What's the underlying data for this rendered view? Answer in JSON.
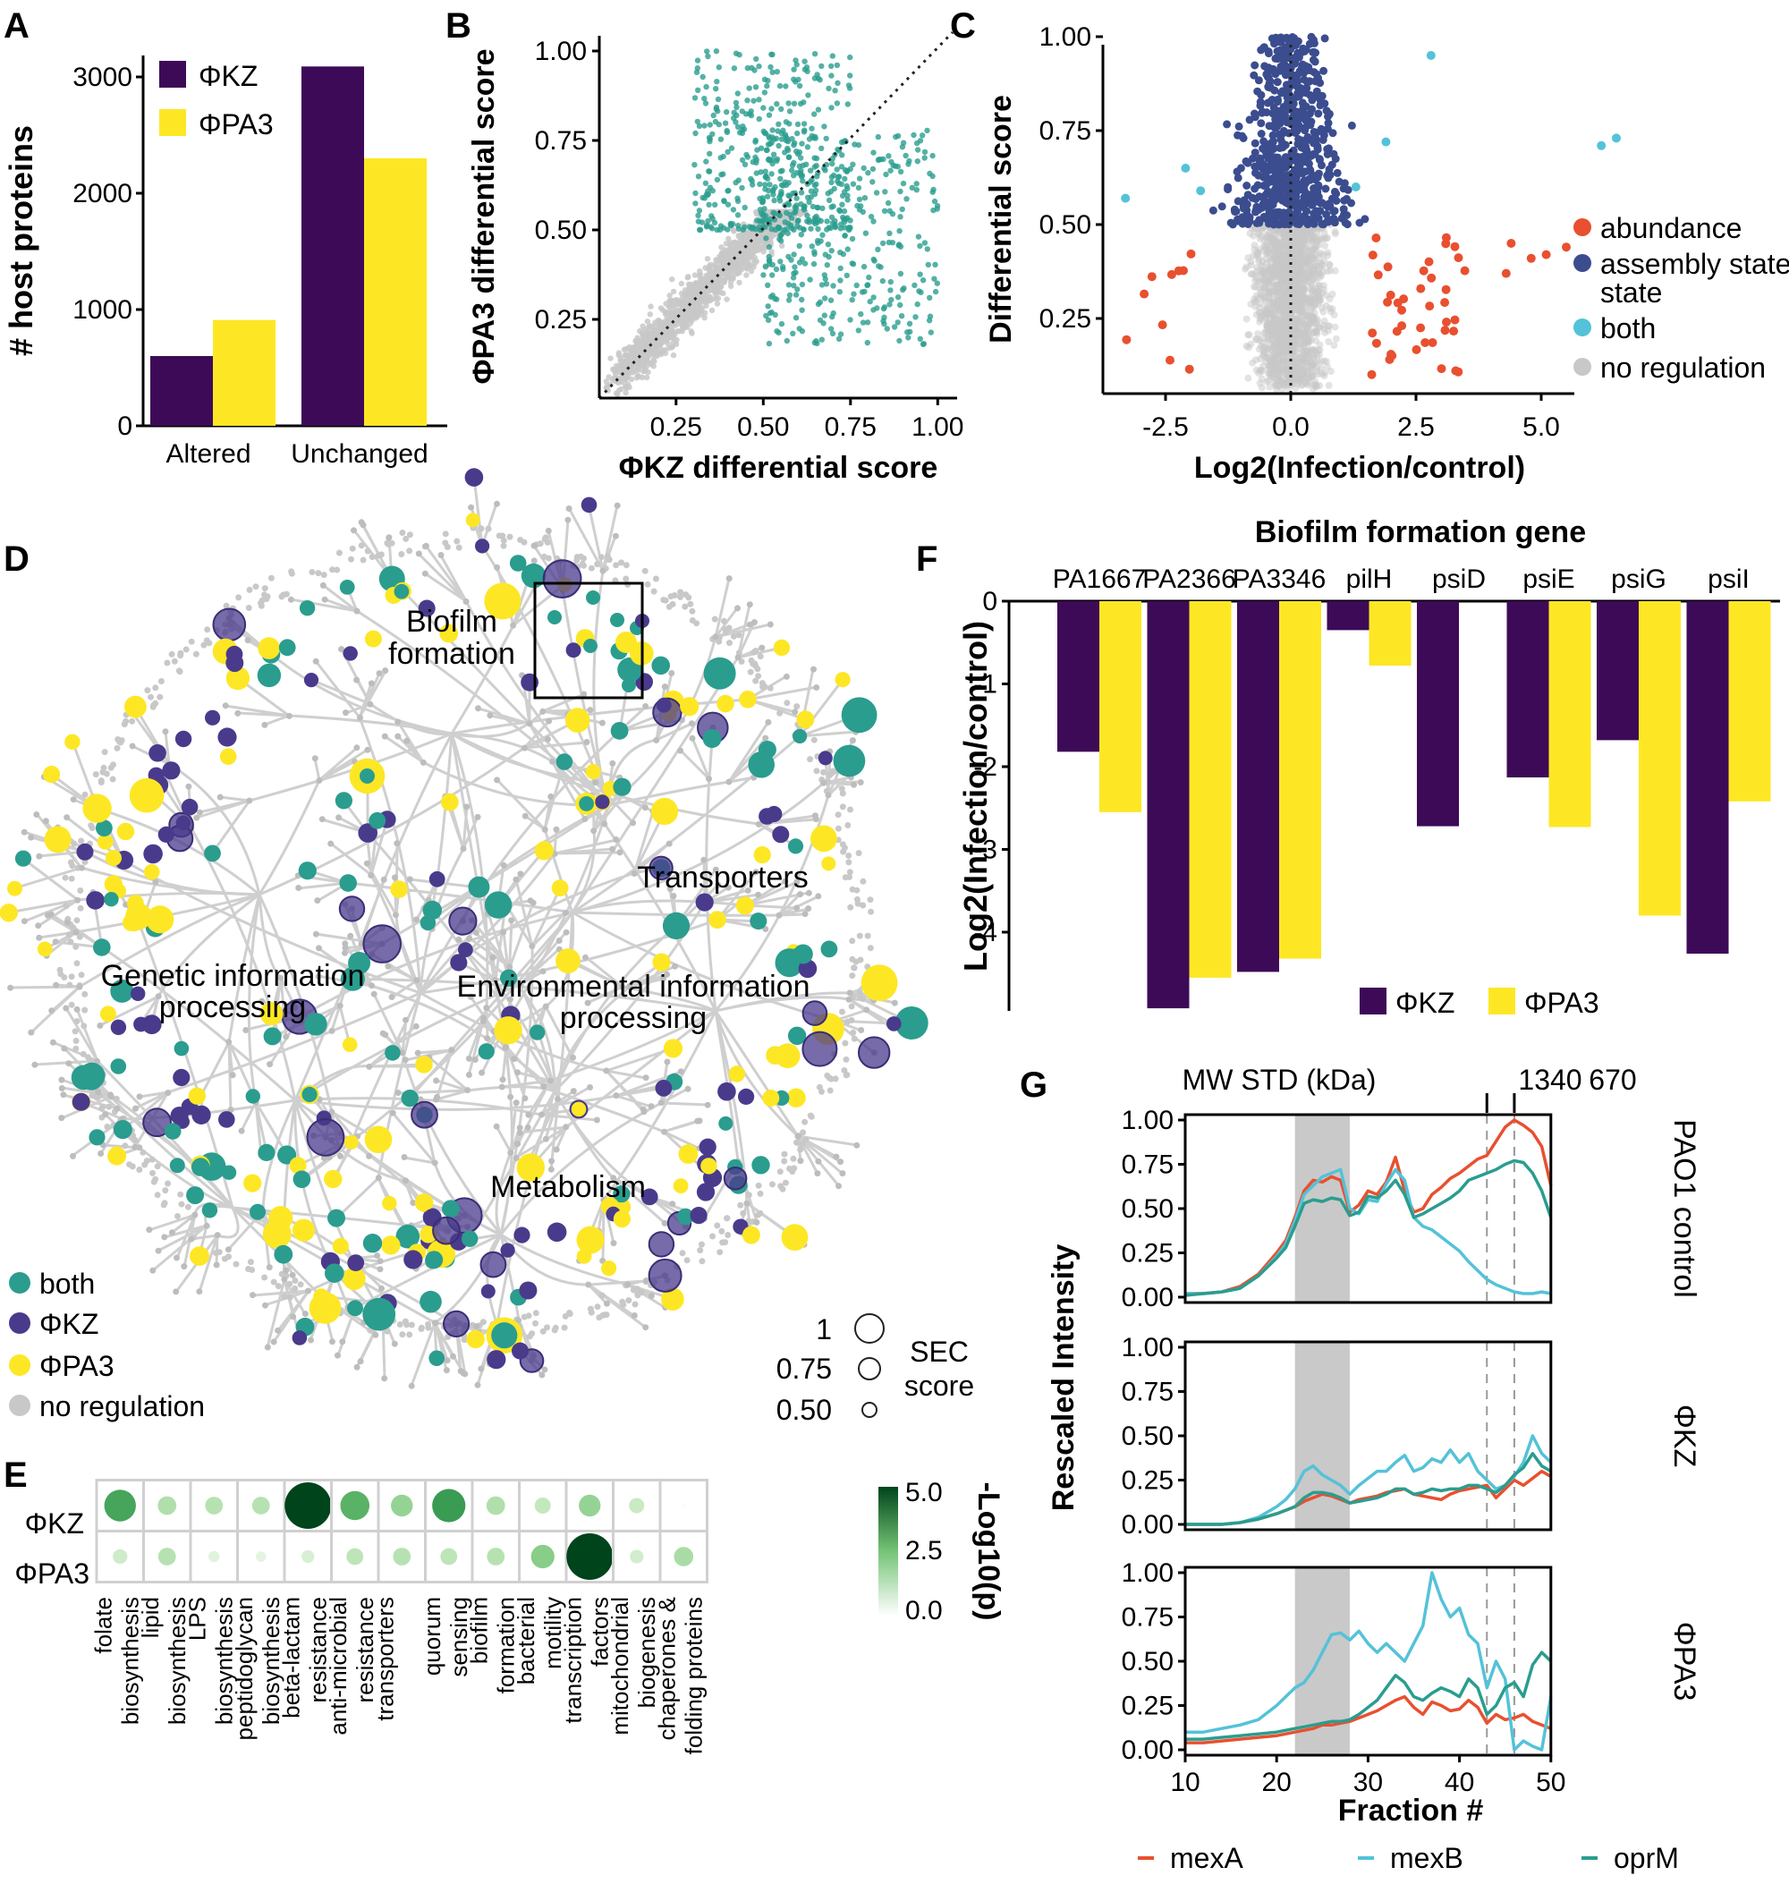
{
  "panels": {
    "A": "A",
    "B": "B",
    "C": "C",
    "D": "D",
    "E": "E",
    "F": "F",
    "G": "G"
  },
  "colors": {
    "phikz": "#3d0a57",
    "phipa3": "#fde725",
    "teal": "#2a9d8f",
    "navy": "#3b4d8f",
    "red": "#e8502f",
    "cyan": "#54c2d8",
    "gray": "#c8c8c8",
    "navyNode": "#4a3a8c"
  },
  "chart_data": [
    {
      "id": "A",
      "type": "bar",
      "categories": [
        "Altered",
        "Unchanged"
      ],
      "series": [
        {
          "name": "ΦKZ",
          "values": [
            600,
            3090
          ]
        },
        {
          "name": "ΦPA3",
          "values": [
            910,
            2300
          ]
        }
      ],
      "ylabel": "# host proteins",
      "ylim": [
        0,
        3100
      ],
      "yticks": [
        "0",
        "1000",
        "2000",
        "3000"
      ],
      "legend": [
        "ΦKZ",
        "ΦPA3"
      ]
    },
    {
      "id": "B",
      "type": "scatter",
      "xlabel": "ΦKZ differential score",
      "ylabel": "ΦPA3 differential score",
      "xlim": [
        0.03,
        1.03
      ],
      "ylim": [
        0.03,
        1.03
      ],
      "xticks": [
        "0.25",
        "0.50",
        "0.75",
        "1.00"
      ],
      "yticks": [
        "0.25",
        "0.50",
        "0.75",
        "1.00"
      ],
      "reference_line": "y = x (dotted)",
      "groups": [
        "differential (teal)",
        "not differential (gray)"
      ]
    },
    {
      "id": "C",
      "type": "scatter",
      "xlabel": "Log2(Infection/control)",
      "ylabel": "Differential score",
      "xlim": [
        -4.5,
        7.2
      ],
      "ylim": [
        0.05,
        1.0
      ],
      "xticks": [
        "-2.5",
        "0.0",
        "2.5",
        "5.0"
      ],
      "yticks": [
        "0.25",
        "0.50",
        "0.75",
        "1.00"
      ],
      "legend": [
        "abundance",
        "assembly state",
        "both",
        "no regulation"
      ],
      "legend_extra": "state"
    },
    {
      "id": "D",
      "type": "network",
      "labels": {
        "biofilm1": "Biofilm",
        "biofilm2": "formation",
        "transporters": "Transporters",
        "gip1": "Genetic information",
        "gip2": "processing",
        "eip1": "Environmental information",
        "eip2": "processing",
        "metabolism": "Metabolism"
      },
      "legend": [
        "both",
        "ΦKZ",
        "ΦPA3",
        "no regulation"
      ],
      "size_legend": {
        "values": [
          "1",
          "0.75",
          "0.50"
        ],
        "title1": "SEC",
        "title2": "score"
      }
    },
    {
      "id": "E",
      "type": "heatmap",
      "rows": [
        "ΦKZ",
        "ΦPA3"
      ],
      "columns": [
        [
          "folate",
          "biosynthesis"
        ],
        [
          "lipid",
          "biosynthesis"
        ],
        [
          "LPS",
          "biosynthesis"
        ],
        [
          "peptidoglycan",
          "biosynthesis"
        ],
        [
          "beta-lactam",
          "resistance"
        ],
        [
          "anti-microbial",
          "resistance"
        ],
        [
          "transporters",
          ""
        ],
        [
          "quorum",
          "sensing"
        ],
        [
          "biofilm",
          "formation"
        ],
        [
          "bacterial",
          "motility"
        ],
        [
          "transcription",
          "factors"
        ],
        [
          "mitochondrial",
          "biogenesis"
        ],
        [
          "chaperones &",
          "folding proteins"
        ]
      ],
      "values": [
        [
          3.2,
          1.6,
          1.5,
          1.5,
          5.0,
          2.9,
          2.0,
          3.4,
          1.6,
          1.3,
          2.0,
          1.2,
          0.1
        ],
        [
          1.1,
          1.5,
          0.7,
          0.6,
          0.9,
          1.4,
          1.5,
          1.4,
          1.5,
          2.2,
          5.0,
          1.0,
          1.7
        ]
      ],
      "colorbar": {
        "label": "-Log10(p)",
        "ticks": [
          "5.0",
          "2.5",
          "0.0"
        ],
        "max": 5.0
      }
    },
    {
      "id": "F",
      "type": "bar",
      "title": "Biofilm formation gene",
      "categories": [
        "PA1667",
        "PA2366",
        "PA3346",
        "pilH",
        "psiD",
        "psiE",
        "psiG",
        "psiI"
      ],
      "series": [
        {
          "name": "ΦKZ",
          "values": [
            -1.82,
            -4.92,
            -4.48,
            -0.35,
            -2.72,
            -2.13,
            -1.68,
            -4.26
          ]
        },
        {
          "name": "ΦPA3",
          "values": [
            -2.55,
            -4.55,
            -4.32,
            -0.78,
            null,
            -2.73,
            -3.8,
            -2.42
          ]
        }
      ],
      "ylabel": "Log2(Infection/control)",
      "ylim": [
        -5,
        0
      ],
      "yticks": [
        "0",
        "-1",
        "-2",
        "-3",
        "-4"
      ],
      "legend": [
        "ΦKZ",
        "ΦPA3"
      ]
    },
    {
      "id": "G",
      "type": "line",
      "xlabel": "Fraction #",
      "ylabel": "Rescaled Intensity",
      "top_label": "MW STD (kDa)",
      "markers": [
        "1340",
        "670"
      ],
      "marker_x": [
        43,
        46
      ],
      "shaded_range": [
        22,
        28
      ],
      "x": [
        10,
        12,
        14,
        16,
        18,
        20,
        21,
        22,
        23,
        24,
        25,
        26,
        27,
        28,
        29,
        30,
        31,
        32,
        33,
        34,
        35,
        36,
        37,
        38,
        39,
        40,
        41,
        42,
        43,
        44,
        45,
        46,
        47,
        48,
        49,
        50
      ],
      "xlim": [
        10,
        50
      ],
      "ylim": [
        0,
        1
      ],
      "xticks": [
        "10",
        "20",
        "30",
        "40",
        "50"
      ],
      "yticks": [
        "0.00",
        "0.25",
        "0.50",
        "0.75",
        "1.00"
      ],
      "legend": [
        "mexA",
        "mexB",
        "oprM"
      ],
      "subpanels": [
        {
          "label": "PAO1 control",
          "series": [
            {
              "name": "mexA",
              "values": [
                0.02,
                0.02,
                0.03,
                0.06,
                0.13,
                0.25,
                0.32,
                0.45,
                0.6,
                0.66,
                0.65,
                0.68,
                0.66,
                0.48,
                0.52,
                0.6,
                0.58,
                0.65,
                0.79,
                0.6,
                0.48,
                0.5,
                0.58,
                0.62,
                0.67,
                0.7,
                0.74,
                0.78,
                0.8,
                0.88,
                0.96,
                1.0,
                0.97,
                0.93,
                0.85,
                0.63
              ]
            },
            {
              "name": "mexB",
              "values": [
                0.02,
                0.02,
                0.03,
                0.05,
                0.12,
                0.23,
                0.3,
                0.43,
                0.58,
                0.63,
                0.68,
                0.7,
                0.72,
                0.5,
                0.47,
                0.55,
                0.54,
                0.64,
                0.72,
                0.66,
                0.45,
                0.4,
                0.38,
                0.34,
                0.3,
                0.26,
                0.2,
                0.15,
                0.1,
                0.07,
                0.05,
                0.03,
                0.02,
                0.02,
                0.03,
                0.02
              ]
            },
            {
              "name": "oprM",
              "values": [
                0.01,
                0.02,
                0.03,
                0.05,
                0.12,
                0.22,
                0.28,
                0.4,
                0.53,
                0.55,
                0.54,
                0.56,
                0.55,
                0.46,
                0.48,
                0.57,
                0.56,
                0.6,
                0.66,
                0.58,
                0.45,
                0.47,
                0.5,
                0.53,
                0.56,
                0.6,
                0.66,
                0.68,
                0.7,
                0.72,
                0.75,
                0.77,
                0.76,
                0.7,
                0.6,
                0.45
              ]
            }
          ]
        },
        {
          "label": "ΦKZ",
          "series": [
            {
              "name": "mexA",
              "values": [
                0.0,
                0.0,
                0.0,
                0.01,
                0.03,
                0.06,
                0.08,
                0.1,
                0.13,
                0.15,
                0.17,
                0.16,
                0.14,
                0.12,
                0.14,
                0.15,
                0.16,
                0.18,
                0.19,
                0.2,
                0.17,
                0.16,
                0.15,
                0.14,
                0.17,
                0.19,
                0.2,
                0.21,
                0.22,
                0.15,
                0.2,
                0.25,
                0.22,
                0.26,
                0.3,
                0.27
              ]
            },
            {
              "name": "mexB",
              "values": [
                0.0,
                0.0,
                0.0,
                0.01,
                0.04,
                0.1,
                0.14,
                0.2,
                0.3,
                0.33,
                0.28,
                0.25,
                0.22,
                0.17,
                0.22,
                0.26,
                0.3,
                0.3,
                0.35,
                0.39,
                0.3,
                0.32,
                0.37,
                0.35,
                0.42,
                0.35,
                0.4,
                0.3,
                0.25,
                0.2,
                0.22,
                0.27,
                0.35,
                0.5,
                0.4,
                0.35
              ]
            },
            {
              "name": "oprM",
              "values": [
                0.0,
                0.0,
                0.0,
                0.01,
                0.03,
                0.06,
                0.08,
                0.1,
                0.15,
                0.18,
                0.18,
                0.17,
                0.15,
                0.12,
                0.13,
                0.14,
                0.15,
                0.17,
                0.2,
                0.2,
                0.17,
                0.18,
                0.2,
                0.19,
                0.2,
                0.2,
                0.22,
                0.22,
                0.2,
                0.18,
                0.22,
                0.28,
                0.32,
                0.4,
                0.33,
                0.3
              ]
            }
          ]
        },
        {
          "label": "ΦPA3",
          "series": [
            {
              "name": "mexA",
              "values": [
                0.04,
                0.04,
                0.05,
                0.06,
                0.07,
                0.08,
                0.09,
                0.1,
                0.11,
                0.12,
                0.14,
                0.14,
                0.15,
                0.16,
                0.18,
                0.2,
                0.22,
                0.25,
                0.28,
                0.3,
                0.24,
                0.2,
                0.27,
                0.25,
                0.22,
                0.23,
                0.28,
                0.24,
                0.15,
                0.2,
                0.17,
                0.18,
                0.2,
                0.16,
                0.14,
                0.12
              ]
            },
            {
              "name": "mexB",
              "values": [
                0.1,
                0.1,
                0.12,
                0.14,
                0.17,
                0.25,
                0.3,
                0.35,
                0.38,
                0.45,
                0.55,
                0.65,
                0.66,
                0.62,
                0.67,
                0.6,
                0.55,
                0.6,
                0.55,
                0.5,
                0.6,
                0.7,
                1.0,
                0.85,
                0.75,
                0.8,
                0.65,
                0.6,
                0.35,
                0.5,
                0.4,
                0.0,
                0.05,
                0.02,
                0.0,
                0.3
              ]
            },
            {
              "name": "oprM",
              "values": [
                0.06,
                0.06,
                0.07,
                0.08,
                0.09,
                0.1,
                0.11,
                0.12,
                0.13,
                0.14,
                0.15,
                0.16,
                0.16,
                0.17,
                0.2,
                0.24,
                0.28,
                0.35,
                0.42,
                0.38,
                0.3,
                0.28,
                0.32,
                0.35,
                0.33,
                0.3,
                0.4,
                0.35,
                0.2,
                0.25,
                0.35,
                0.38,
                0.3,
                0.48,
                0.55,
                0.5
              ]
            }
          ]
        }
      ]
    }
  ]
}
